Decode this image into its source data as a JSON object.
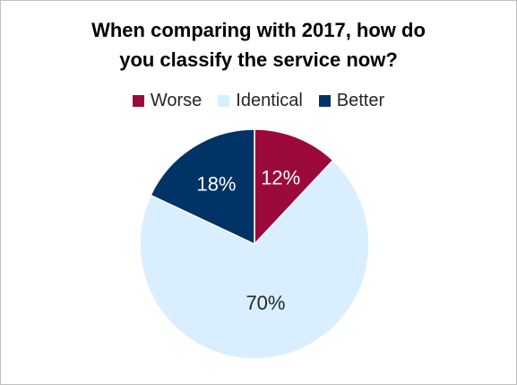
{
  "chart_data": {
    "type": "pie",
    "title_lines": [
      "When comparing with 2017, how do",
      "you classify the service now?"
    ],
    "categories": [
      "Worse",
      "Identical",
      "Better"
    ],
    "values": [
      12,
      70,
      18
    ],
    "labels": [
      "12%",
      "70%",
      "18%"
    ],
    "colors": [
      "#9b0a3a",
      "#d9efff",
      "#003366"
    ],
    "label_colors": [
      "#ffffff",
      "#262626",
      "#ffffff"
    ],
    "legend_position": "top",
    "start_angle_deg": 0,
    "direction": "clockwise"
  }
}
